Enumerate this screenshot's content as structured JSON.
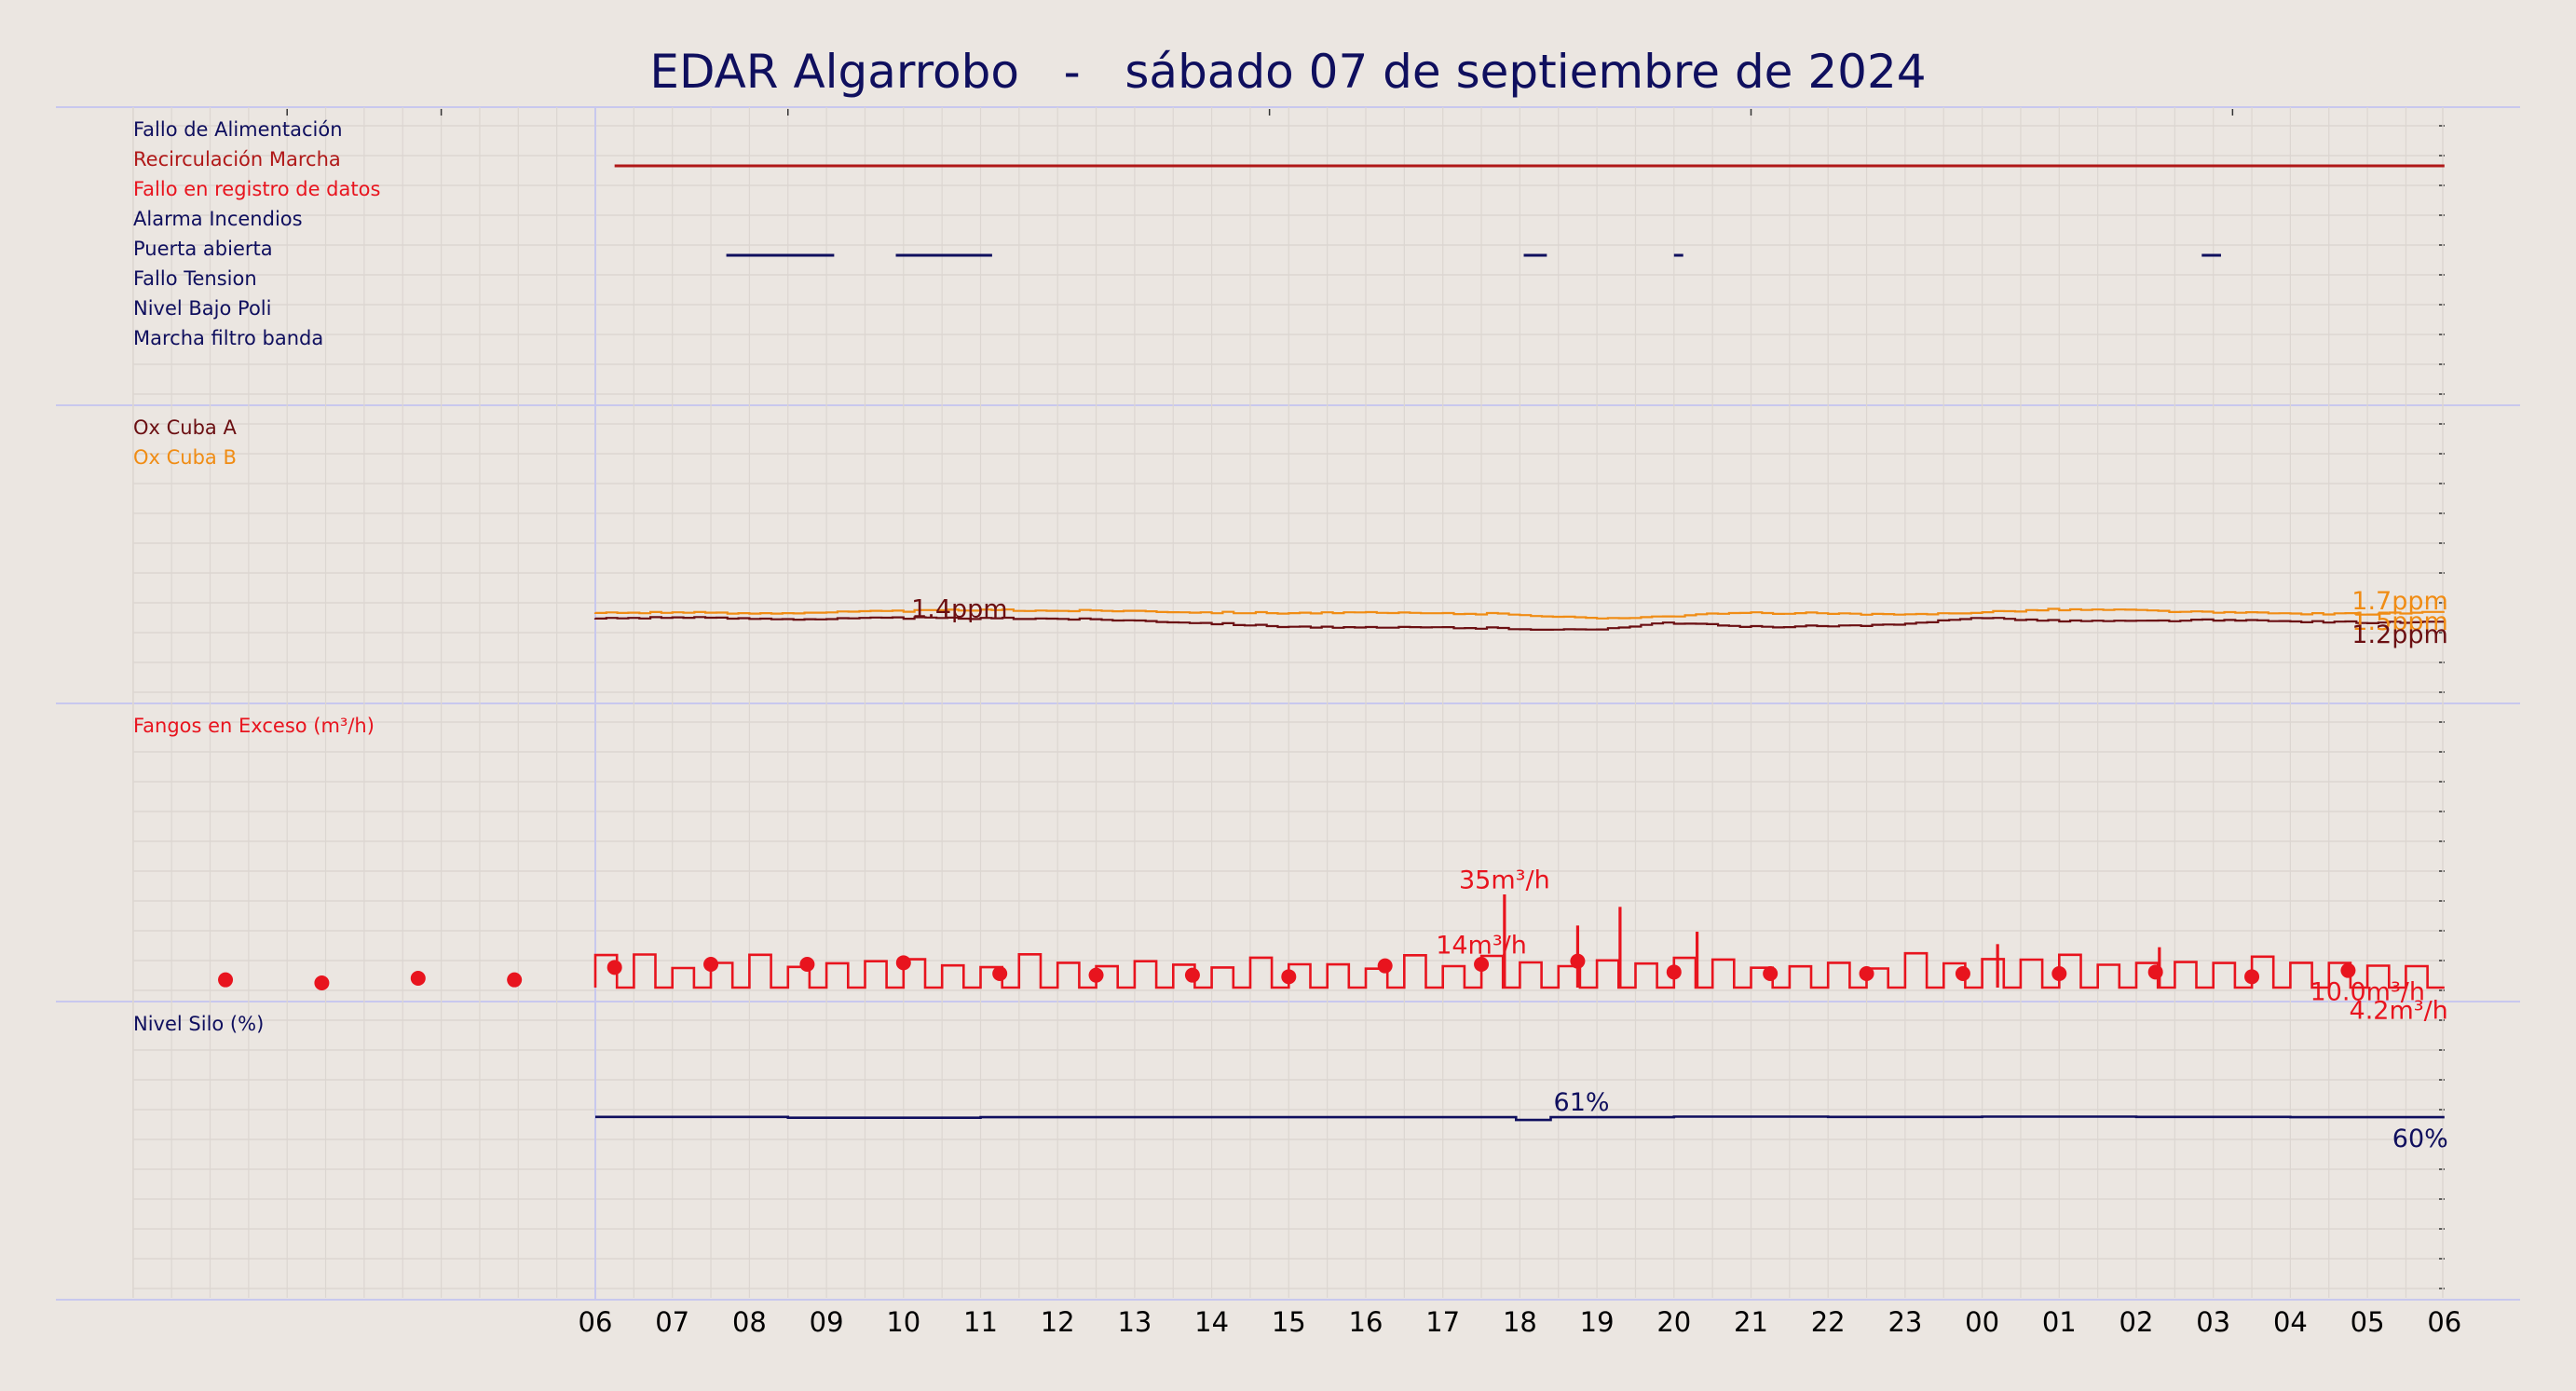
{
  "title": "EDAR Algarrobo   -   sábado 07 de septiembre de 2024",
  "colors": {
    "background": "#ebe6e1",
    "navy": "#0f0f5e",
    "maroon": "#6b0f12",
    "orange": "#f08c14",
    "red": "#e8141e"
  },
  "chart_data": {
    "type": "line",
    "x_tick_labels": [
      "06",
      "07",
      "08",
      "09",
      "10",
      "11",
      "12",
      "13",
      "14",
      "15",
      "16",
      "17",
      "18",
      "19",
      "20",
      "21",
      "22",
      "23",
      "00",
      "01",
      "02",
      "03",
      "04",
      "05",
      "06"
    ],
    "panels": [
      {
        "id": "alarms",
        "labels": [
          {
            "text": "Fallo de Alimentación",
            "color": "#0f0f5e"
          },
          {
            "text": "Recirculación Marcha",
            "color": "#b01818"
          },
          {
            "text": "Fallo en registro de datos",
            "color": "#e8141e"
          },
          {
            "text": "Alarma Incendios",
            "color": "#0f0f5e"
          },
          {
            "text": "Puerta abierta",
            "color": "#0f0f5e"
          },
          {
            "text": "Fallo Tension",
            "color": "#0f0f5e"
          },
          {
            "text": "Nivel Bajo Poli",
            "color": "#0f0f5e"
          },
          {
            "text": "Marcha filtro banda",
            "color": "#0f0f5e"
          }
        ],
        "intervals": [
          {
            "row": 1,
            "color": "#b01818",
            "spans": [
              [
                0.25,
                24.0
              ]
            ]
          },
          {
            "row": 4,
            "color": "#0f0f5e",
            "spans": [
              [
                1.7,
                3.1
              ],
              [
                3.9,
                5.15
              ],
              [
                12.05,
                12.35
              ],
              [
                14.0,
                14.12
              ],
              [
                20.85,
                21.1
              ]
            ]
          }
        ]
      },
      {
        "id": "oxygen",
        "labels": [
          {
            "text": "Ox Cuba A",
            "color": "#6b0f12"
          },
          {
            "text": "Ox Cuba B",
            "color": "#f08c14"
          }
        ],
        "series": [
          {
            "name": "Ox Cuba A",
            "color": "#6b0f12",
            "x": [
              0,
              1,
              2,
              3,
              4,
              5,
              6,
              7,
              8,
              9,
              10,
              11,
              12,
              13,
              14,
              15,
              16,
              17,
              18,
              19,
              20,
              21,
              22,
              23,
              24
            ],
            "y": [
              1.27,
              1.29,
              1.27,
              1.26,
              1.28,
              1.27,
              1.27,
              1.24,
              1.19,
              1.13,
              1.1,
              1.11,
              1.09,
              1.06,
              1.2,
              1.12,
              1.13,
              1.15,
              1.29,
              1.23,
              1.22,
              1.24,
              1.22,
              1.2,
              1.2
            ]
          },
          {
            "name": "Ox Cuba B",
            "color": "#f08c14",
            "x": [
              0,
              1,
              2,
              3,
              4,
              5,
              6,
              7,
              8,
              9,
              10,
              11,
              12,
              13,
              14,
              15,
              16,
              17,
              18,
              19,
              20,
              21,
              22,
              23,
              24
            ],
            "y": [
              1.37,
              1.38,
              1.36,
              1.38,
              1.4,
              1.42,
              1.41,
              1.41,
              1.38,
              1.37,
              1.37,
              1.36,
              1.35,
              1.27,
              1.31,
              1.37,
              1.36,
              1.33,
              1.38,
              1.43,
              1.42,
              1.38,
              1.36,
              1.35,
              1.38
            ]
          }
        ],
        "annotations": [
          {
            "text": "1.4ppm",
            "color": "#6b0f12",
            "x": 4.1,
            "y": 1.46
          },
          {
            "text": "1.7ppm",
            "color": "#f08c14",
            "x": 24.0,
            "y": 1.6
          },
          {
            "text": "1.5ppm",
            "color": "#f08c14",
            "x": 24.0,
            "y": 1.23
          },
          {
            "text": "1.2ppm",
            "color": "#6b0f12",
            "x": 24.0,
            "y": 1.0
          }
        ],
        "ylim": [
          0,
          5
        ]
      },
      {
        "id": "fangos",
        "labels": [
          {
            "text": "Fangos en Exceso (m³/h)",
            "color": "#e8141e"
          }
        ],
        "series": [
          {
            "name": "Fangos en Exceso (m³/h)",
            "color": "#e8141e",
            "step_low": 0,
            "step_high": 8.5,
            "markers_x": [
              -4.8,
              -3.55,
              -2.3,
              -1.05,
              0.25,
              1.5,
              2.75,
              4.0,
              5.25,
              6.5,
              7.75,
              9.0,
              10.25,
              11.5,
              12.75,
              14.0,
              15.25,
              16.5,
              17.75,
              19.0,
              20.25,
              21.5,
              22.75
            ],
            "markers_y": [
              2.5,
              1.5,
              3.0,
              2.5,
              6.5,
              7.5,
              7.5,
              8.0,
              4.5,
              4.0,
              4.0,
              3.5,
              7.0,
              7.5,
              8.5,
              5.0,
              4.5,
              4.5,
              4.5,
              4.5,
              5.0,
              3.5,
              5.5
            ],
            "spikes_x": [
              11.8,
              12.75,
              13.3,
              14.3,
              18.2,
              20.3
            ],
            "spikes_y": [
              30.0,
              20.0,
              26.0,
              18.0,
              14.0,
              13.0
            ]
          }
        ],
        "annotations": [
          {
            "text": "35m³/h",
            "color": "#e8141e",
            "x": 11.8,
            "y": 35
          },
          {
            "text": "14m³/h",
            "color": "#e8141e",
            "x": 11.5,
            "y": 14
          },
          {
            "text": "10.0m³/h",
            "color": "#e8141e",
            "x": 23.7,
            "y": -1
          },
          {
            "text": "4.2m³/h",
            "color": "#e8141e",
            "x": 24.0,
            "y": -7
          }
        ],
        "ylim": [
          0,
          90
        ]
      },
      {
        "id": "silo",
        "labels": [
          {
            "text": "Nivel Silo (%)",
            "color": "#0f0f5e"
          }
        ],
        "series": [
          {
            "name": "Nivel Silo (%)",
            "color": "#0f0f5e",
            "x": [
              0,
              2.5,
              5,
              7.5,
              10,
              11.7,
              11.95,
              12.4,
              14,
              16,
              18,
              20,
              22,
              24
            ],
            "y": [
              60.4,
              60.1,
              60.3,
              60.3,
              60.3,
              60.3,
              59.3,
              60.3,
              60.5,
              60.4,
              60.5,
              60.4,
              60.3,
              60.3
            ]
          }
        ],
        "annotations": [
          {
            "text": "61%",
            "color": "#0f0f5e",
            "x": 12.8,
            "y": 66
          },
          {
            "text": "60%",
            "color": "#0f0f5e",
            "x": 24.0,
            "y": 53
          }
        ],
        "ylim": [
          0,
          100
        ]
      }
    ]
  }
}
